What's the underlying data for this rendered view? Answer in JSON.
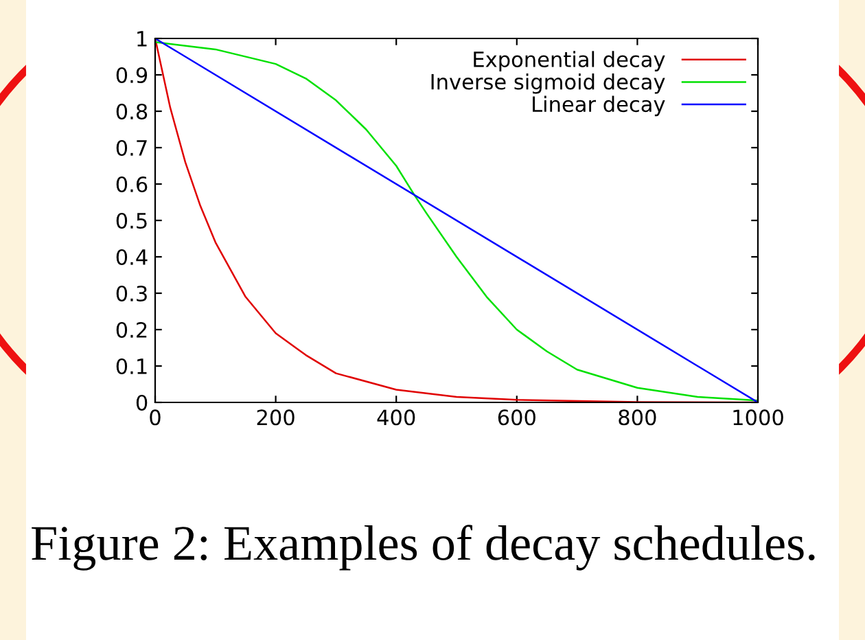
{
  "chart_data": {
    "type": "line",
    "xlim": [
      0,
      1000
    ],
    "ylim": [
      0,
      1
    ],
    "xticks": [
      0,
      200,
      400,
      600,
      800,
      1000
    ],
    "yticks": [
      0,
      0.1,
      0.2,
      0.3,
      0.4,
      0.5,
      0.6,
      0.7,
      0.8,
      0.9,
      1
    ],
    "grid": false,
    "legend": "top right",
    "marker": "none",
    "line_style": "solid",
    "series": [
      {
        "name": "Exponential decay",
        "color": "#e00000",
        "x": [
          0,
          25,
          50,
          75,
          100,
          150,
          200,
          250,
          300,
          400,
          500,
          600,
          800,
          1000
        ],
        "values": [
          1,
          0.81,
          0.66,
          0.54,
          0.44,
          0.29,
          0.19,
          0.13,
          0.08,
          0.035,
          0.015,
          0.007,
          0.001,
          0
        ]
      },
      {
        "name": "Inverse sigmoid decay",
        "color": "#00e000",
        "x": [
          0,
          100,
          200,
          250,
          300,
          350,
          400,
          430,
          450,
          500,
          550,
          600,
          650,
          700,
          800,
          900,
          1000
        ],
        "values": [
          0.99,
          0.97,
          0.93,
          0.89,
          0.83,
          0.75,
          0.65,
          0.57,
          0.52,
          0.4,
          0.29,
          0.2,
          0.14,
          0.09,
          0.04,
          0.015,
          0.005
        ]
      },
      {
        "name": "Linear decay",
        "color": "#0000ff",
        "x": [
          0,
          1000
        ],
        "values": [
          1,
          0
        ]
      }
    ],
    "annotations": [
      "Figure 2: Examples of decay schedules."
    ]
  }
}
